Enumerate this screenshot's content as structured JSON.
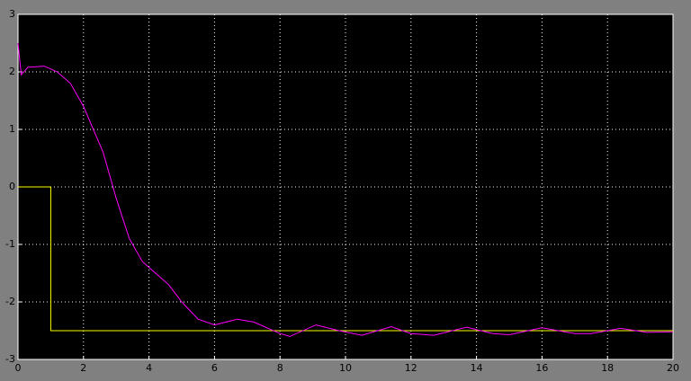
{
  "chart_data": {
    "type": "line",
    "xlim": [
      0,
      20
    ],
    "xticks": [
      0,
      2,
      4,
      6,
      8,
      10,
      12,
      14,
      16,
      18,
      20
    ],
    "ylim": [
      -3,
      3
    ],
    "yticks": [
      -3,
      -2,
      -1,
      0,
      1,
      2,
      3
    ],
    "grid": true,
    "series": [
      {
        "color": "#ffff00",
        "x": [
          0,
          1,
          1,
          20
        ],
        "values": [
          0,
          0,
          -2.5,
          -2.5
        ]
      },
      {
        "color": "#ff00ff",
        "x": [
          0,
          0.1,
          0.3,
          0.8,
          1.2,
          1.6,
          2,
          2.6,
          3,
          3.4,
          3.8,
          4.2,
          4.6,
          5,
          5.5,
          6,
          6.7,
          7.2,
          8,
          8.3,
          9.1,
          9.8,
          10.5,
          11.4,
          12,
          12.7,
          13.7,
          14.5,
          15,
          16,
          17,
          17.5,
          18.4,
          19.2,
          20
        ],
        "values": [
          2.5,
          1.95,
          2.08,
          2.1,
          2.0,
          1.8,
          1.4,
          0.6,
          -0.2,
          -0.9,
          -1.3,
          -1.5,
          -1.7,
          -2.0,
          -2.3,
          -2.4,
          -2.3,
          -2.35,
          -2.55,
          -2.6,
          -2.4,
          -2.5,
          -2.58,
          -2.43,
          -2.55,
          -2.58,
          -2.44,
          -2.55,
          -2.57,
          -2.45,
          -2.55,
          -2.55,
          -2.46,
          -2.53,
          -2.52
        ]
      }
    ]
  }
}
